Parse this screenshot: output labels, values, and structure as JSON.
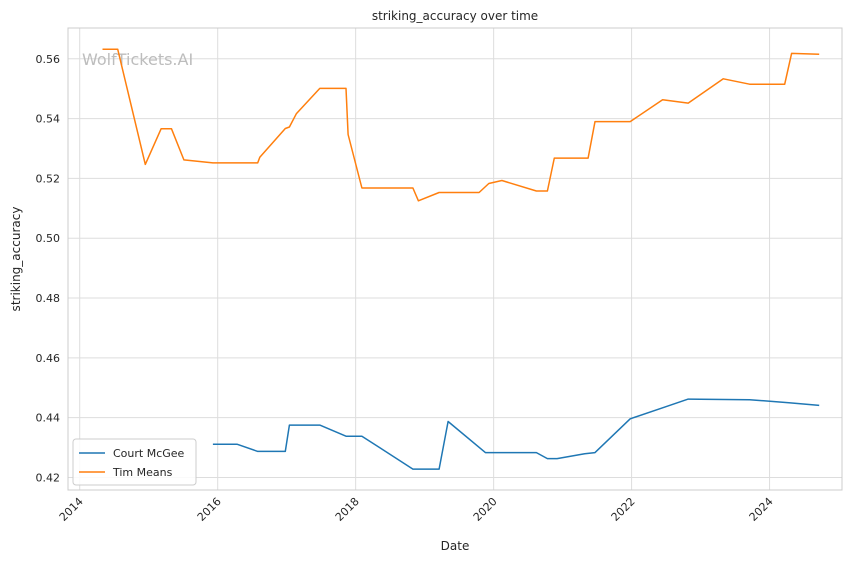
{
  "chart_data": {
    "type": "line",
    "title": "striking_accuracy over time",
    "xlabel": "Date",
    "ylabel": "striking_accuracy",
    "watermark": "WolfTickets.AI",
    "x_ticks": [
      "2014",
      "2016",
      "2018",
      "2020",
      "2022",
      "2024"
    ],
    "y_ticks": [
      "0.42",
      "0.44",
      "0.46",
      "0.48",
      "0.50",
      "0.52",
      "0.54",
      "0.56"
    ],
    "xlim": [
      2013.83,
      2025.05
    ],
    "ylim": [
      0.4158,
      0.5703
    ],
    "grid": true,
    "legend_position": "lower-left",
    "series": [
      {
        "name": "Court McGee",
        "color": "#1f77b4",
        "x": [
          2015.93,
          2016.28,
          2016.58,
          2016.98,
          2017.04,
          2017.48,
          2017.86,
          2018.09,
          2018.83,
          2019.21,
          2019.34,
          2019.88,
          2020.62,
          2020.78,
          2020.92,
          2021.32,
          2021.47,
          2021.98,
          2022.45,
          2022.82,
          2023.71,
          2024.28,
          2024.72
        ],
        "values": [
          0.4311,
          0.4311,
          0.4287,
          0.4287,
          0.4375,
          0.4375,
          0.4338,
          0.4338,
          0.4228,
          0.4228,
          0.4387,
          0.4283,
          0.4283,
          0.4263,
          0.4263,
          0.4279,
          0.4283,
          0.4396,
          0.4433,
          0.4462,
          0.446,
          0.445,
          0.4441
        ]
      },
      {
        "name": "Tim Means",
        "color": "#ff7f0e",
        "x": [
          2014.33,
          2014.55,
          2014.95,
          2015.18,
          2015.33,
          2015.51,
          2015.93,
          2016.58,
          2016.61,
          2016.98,
          2017.04,
          2017.14,
          2017.48,
          2017.86,
          2017.89,
          2018.09,
          2018.83,
          2018.91,
          2019.21,
          2019.79,
          2019.93,
          2020.12,
          2020.62,
          2020.78,
          2020.88,
          2021.37,
          2021.47,
          2021.98,
          2022.45,
          2022.82,
          2023.33,
          2023.71,
          2024.22,
          2024.32,
          2024.72
        ],
        "values": [
          0.5632,
          0.5632,
          0.5247,
          0.5366,
          0.5366,
          0.5262,
          0.5252,
          0.5252,
          0.5271,
          0.5367,
          0.5372,
          0.5416,
          0.5501,
          0.5501,
          0.5347,
          0.5168,
          0.5168,
          0.5125,
          0.5153,
          0.5153,
          0.5183,
          0.5193,
          0.5158,
          0.5158,
          0.5268,
          0.5268,
          0.539,
          0.539,
          0.5463,
          0.5452,
          0.5533,
          0.5515,
          0.5515,
          0.5618,
          0.5615
        ]
      }
    ]
  }
}
